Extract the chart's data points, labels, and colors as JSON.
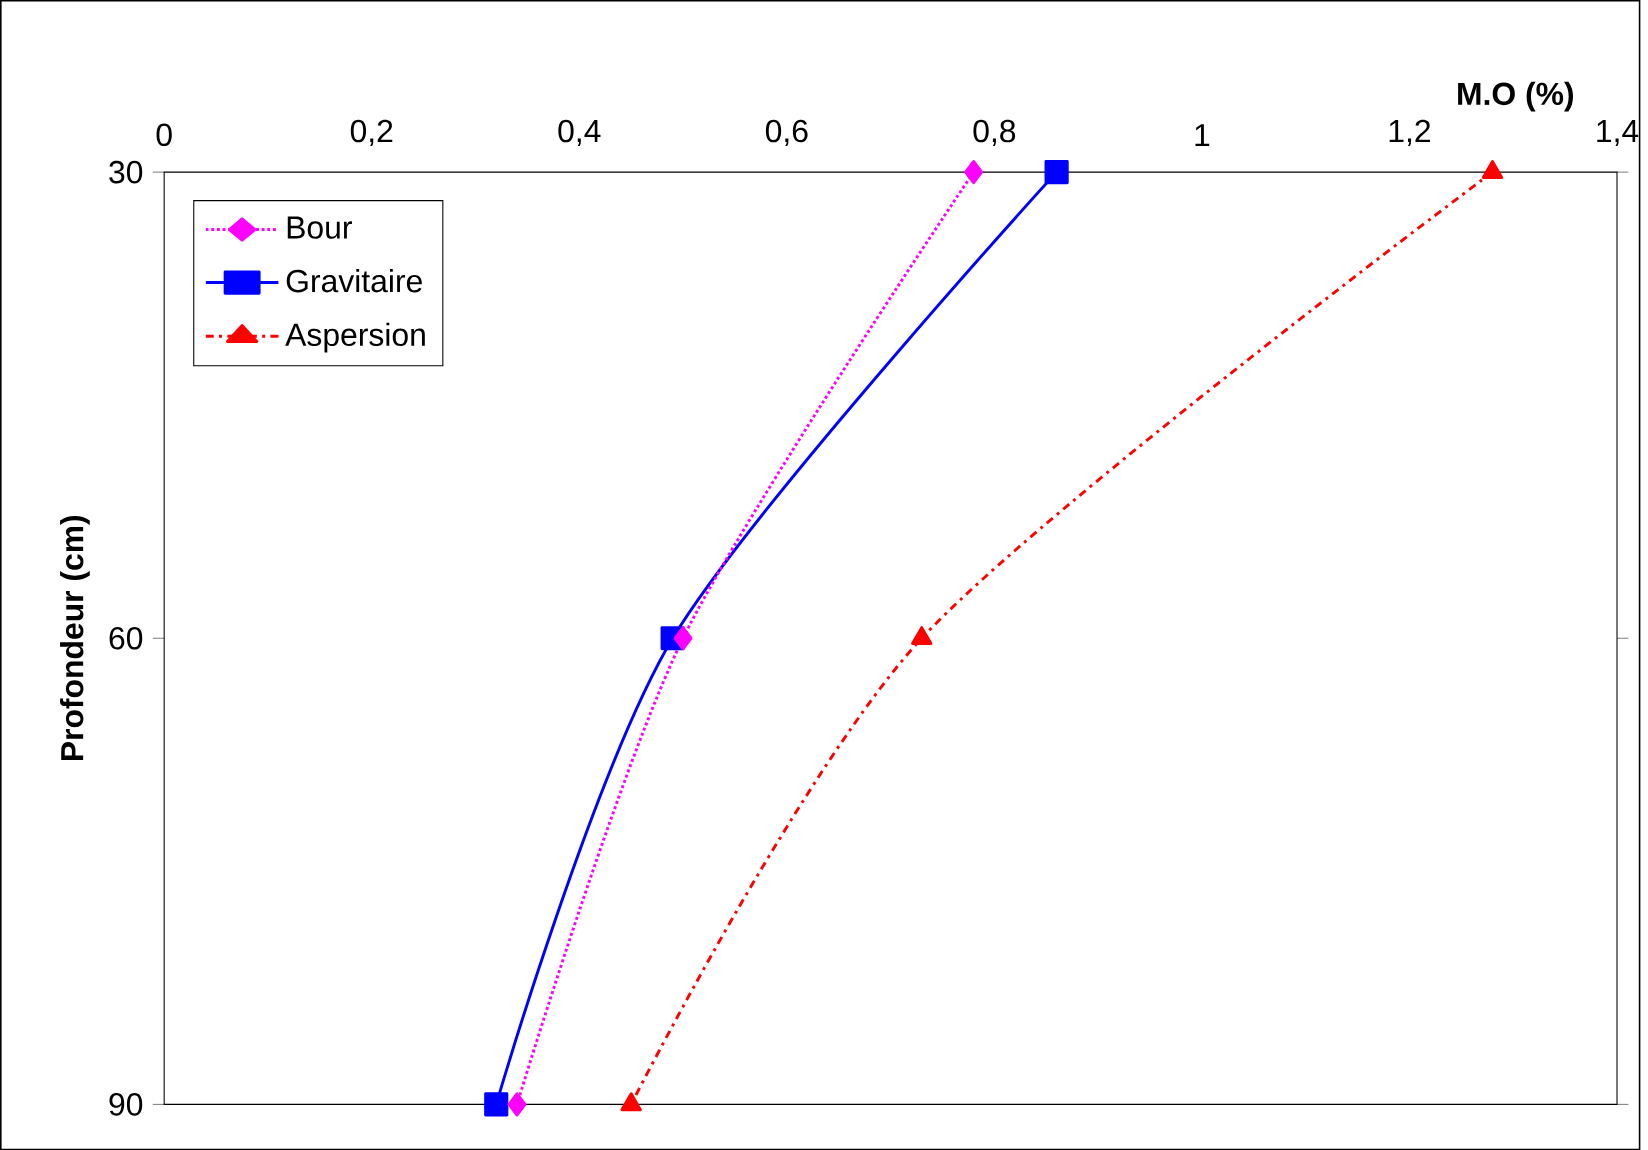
{
  "chart_data": {
    "type": "line",
    "xlabel": "M.O (%)",
    "ylabel": "Profondeur (cm)",
    "xlim": [
      0,
      1.4
    ],
    "xticks": [
      0,
      {
        "value": 0.2,
        "label": "0,2"
      },
      {
        "value": 0.4,
        "label": "0,4"
      },
      {
        "value": 0.6,
        "label": "0,6"
      },
      {
        "value": 0.8,
        "label": "0,8"
      },
      1,
      {
        "value": 1.2,
        "label": "1,2"
      },
      {
        "value": 1.4,
        "label": "1,4"
      }
    ],
    "ylim": [
      90,
      30
    ],
    "yticks": [
      30,
      60,
      90
    ],
    "grid": false,
    "legend": "top left",
    "series": [
      {
        "name": "Bour",
        "color": "#ff00ff",
        "marker": "diamond",
        "line_style": "dotted",
        "x": [
          0.78,
          0.5,
          0.34
        ],
        "values": [
          30,
          60,
          90
        ]
      },
      {
        "name": "Gravitaire",
        "color": "#0000ff",
        "marker": "square",
        "line_style": "solid",
        "x": [
          0.86,
          0.49,
          0.32
        ],
        "values": [
          30,
          60,
          90
        ]
      },
      {
        "name": "Aspersion",
        "color": "#ff0000",
        "marker": "triangle",
        "line_style": "dashed",
        "x": [
          1.28,
          0.73,
          0.45
        ],
        "values": [
          30,
          60,
          90
        ]
      }
    ]
  }
}
